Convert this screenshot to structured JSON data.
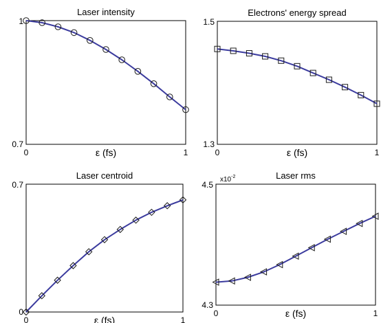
{
  "style": {
    "line_color": "#3b3b9e",
    "marker_color": "#1a1a1a",
    "axes_color": "#000000",
    "background": "#ffffff"
  },
  "chart_data": [
    {
      "type": "line",
      "title": "Laser intensity",
      "xlabel": "ε (fs)",
      "ylabel": "",
      "marker": "circle",
      "xlim": [
        0,
        1
      ],
      "ylim": [
        0.7,
        1
      ],
      "x_ticks": [
        "0",
        "1"
      ],
      "y_ticks": [
        "0.7",
        "1"
      ],
      "y_multiplier": "",
      "grid": false,
      "series": [
        {
          "x": [
            0,
            0.1,
            0.2,
            0.3,
            0.4,
            0.5,
            0.6,
            0.7,
            0.8,
            0.9,
            1.0
          ],
          "y": [
            1.0,
            0.995,
            0.985,
            0.971,
            0.952,
            0.93,
            0.905,
            0.877,
            0.847,
            0.815,
            0.784
          ]
        }
      ]
    },
    {
      "type": "line",
      "title": "Electrons' energy spread",
      "xlabel": "ε (fs)",
      "ylabel": "",
      "marker": "square",
      "xlim": [
        0,
        1
      ],
      "ylim": [
        1.3,
        1.5
      ],
      "x_ticks": [
        "0",
        "1"
      ],
      "y_ticks": [
        "1.3",
        "1.5"
      ],
      "y_multiplier": "",
      "grid": false,
      "series": [
        {
          "x": [
            0,
            0.1,
            0.2,
            0.3,
            0.4,
            0.5,
            0.6,
            0.7,
            0.8,
            0.9,
            1.0
          ],
          "y": [
            1.455,
            1.452,
            1.448,
            1.443,
            1.436,
            1.427,
            1.416,
            1.405,
            1.393,
            1.38,
            1.366
          ]
        }
      ]
    },
    {
      "type": "line",
      "title": "Laser centroid",
      "xlabel": "ε (fs)",
      "ylabel": "",
      "marker": "diamond",
      "xlim": [
        0,
        1
      ],
      "ylim": [
        0,
        0.7
      ],
      "x_ticks": [
        "0",
        "1"
      ],
      "y_ticks": [
        "0",
        "0.7"
      ],
      "y_multiplier": "",
      "grid": false,
      "series": [
        {
          "x": [
            0,
            0.1,
            0.2,
            0.3,
            0.4,
            0.5,
            0.6,
            0.7,
            0.8,
            0.9,
            1.0
          ],
          "y": [
            0,
            0.089,
            0.174,
            0.254,
            0.33,
            0.396,
            0.452,
            0.503,
            0.546,
            0.582,
            0.614
          ]
        }
      ]
    },
    {
      "type": "line",
      "title": "Laser rms",
      "xlabel": "ε (fs)",
      "ylabel": "",
      "marker": "triangle-left",
      "xlim": [
        0,
        1
      ],
      "ylim": [
        4.3,
        4.5
      ],
      "x_ticks": [
        "0",
        "1"
      ],
      "y_ticks": [
        "4.3",
        "4.5"
      ],
      "y_multiplier": "x10",
      "y_multiplier_exp": "-2",
      "grid": false,
      "series": [
        {
          "x": [
            0,
            0.1,
            0.2,
            0.3,
            0.4,
            0.5,
            0.6,
            0.7,
            0.8,
            0.9,
            1.0
          ],
          "y": [
            4.338,
            4.34,
            4.346,
            4.355,
            4.367,
            4.381,
            4.395,
            4.409,
            4.422,
            4.435,
            4.447
          ]
        }
      ]
    }
  ]
}
